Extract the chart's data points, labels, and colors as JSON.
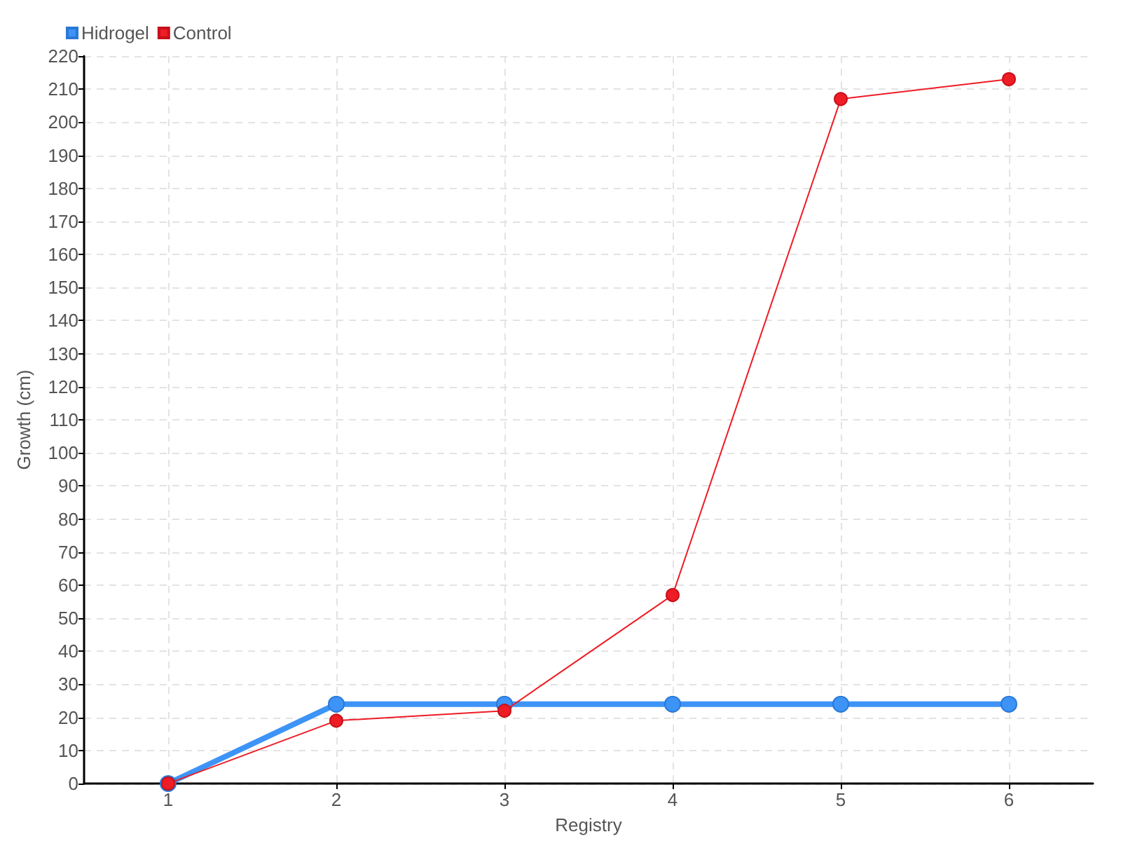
{
  "chart_data": {
    "type": "line",
    "xlabel": "Registry",
    "ylabel": "Growth (cm)",
    "categories": [
      "1",
      "2",
      "3",
      "4",
      "5",
      "6"
    ],
    "series": [
      {
        "name": "Hidrogel",
        "color": "#3d94f6",
        "values": [
          0,
          24,
          24,
          24,
          24,
          24
        ]
      },
      {
        "name": "Control",
        "color": "#ee1c25",
        "values": [
          0,
          19,
          22,
          57,
          207,
          213
        ]
      }
    ],
    "ylim": [
      0,
      220
    ],
    "yticks": [
      0,
      10,
      20,
      30,
      40,
      50,
      60,
      70,
      80,
      90,
      100,
      110,
      120,
      130,
      140,
      150,
      160,
      170,
      180,
      190,
      200,
      210,
      220
    ],
    "grid": true,
    "legend": "top left",
    "marker": "circle"
  }
}
